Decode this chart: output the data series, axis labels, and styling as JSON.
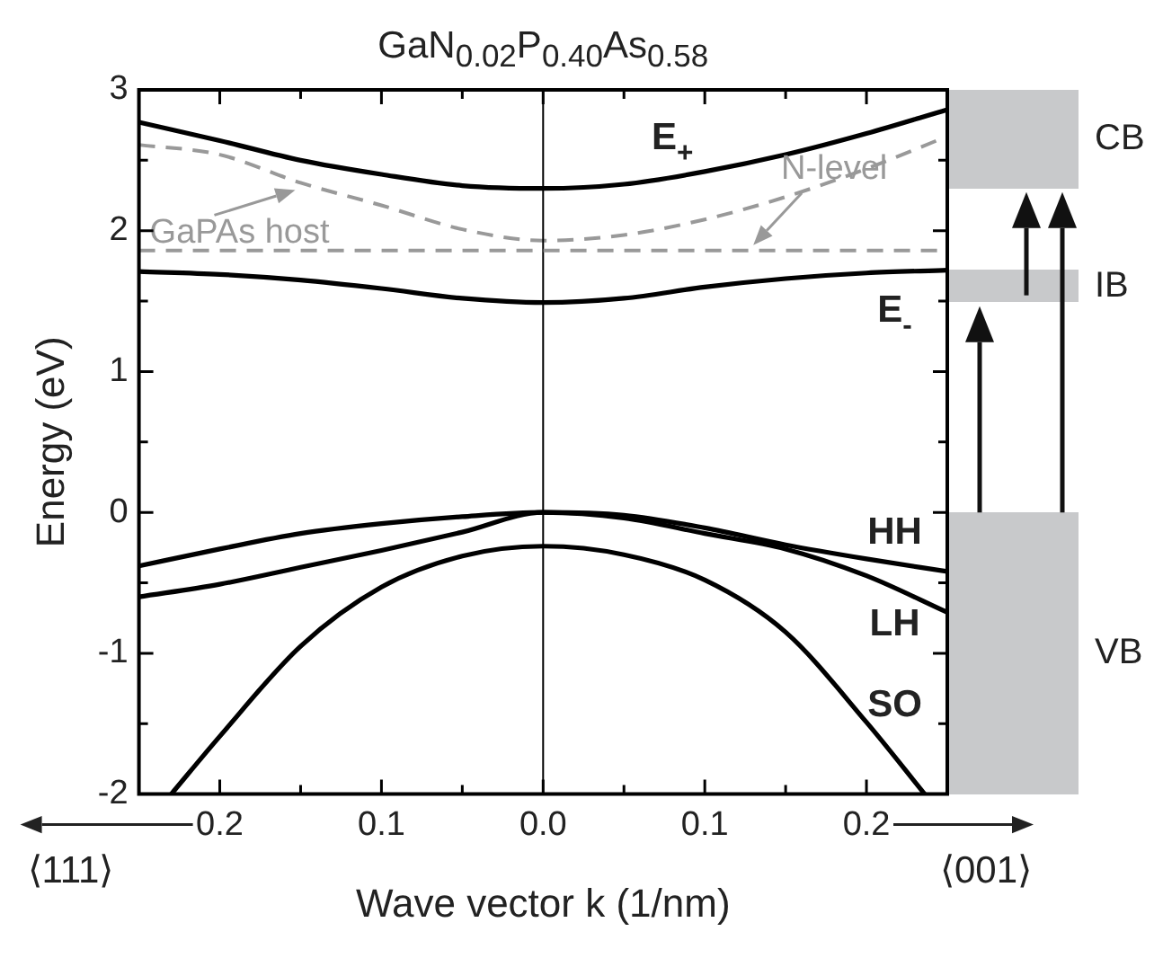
{
  "chart_data": {
    "type": "line",
    "title": "GaN$_{0.02}$P$_{0.40}$As$_{0.58}$",
    "xlabel": "Wave vector k (1/nm)",
    "ylabel": "Energy (eV)",
    "xlim": [
      -0.25,
      0.25
    ],
    "xticks": [
      {
        "value": -0.2,
        "label": "0.2"
      },
      {
        "value": -0.15,
        "label": null
      },
      {
        "value": -0.1,
        "label": "0.1"
      },
      {
        "value": -0.05,
        "label": null
      },
      {
        "value": 0,
        "label": "0.0"
      },
      {
        "value": 0.05,
        "label": null
      },
      {
        "value": 0.1,
        "label": "0.1"
      },
      {
        "value": 0.15,
        "label": null
      },
      {
        "value": 0.2,
        "label": "0.2"
      }
    ],
    "ylim": [
      -2,
      3
    ],
    "yticks": [
      -2,
      {
        "value": -1.5,
        "label": null
      },
      -1,
      {
        "value": -0.5,
        "label": null
      },
      0,
      {
        "value": 0.5,
        "label": null
      },
      1,
      {
        "value": 1.5,
        "label": null
      },
      2,
      {
        "value": 2.5,
        "label": null
      },
      3
    ],
    "grid": false,
    "legend": false,
    "marker": "none",
    "series": [
      {
        "color": "#000000",
        "line_style": "solid",
        "x": [
          -0.25,
          -0.2,
          -0.15,
          -0.1,
          -0.05,
          0,
          0.05,
          0.1,
          0.15,
          0.2,
          0.25
        ],
        "values": [
          2.77,
          2.64,
          2.5,
          2.4,
          2.32,
          2.3,
          2.33,
          2.42,
          2.54,
          2.69,
          2.86
        ]
      },
      {
        "color": "#999999",
        "line_style": "dashed",
        "x": [
          -0.25,
          -0.2,
          -0.15,
          -0.1,
          -0.05,
          0,
          0.05,
          0.1,
          0.15,
          0.2,
          0.25
        ],
        "values": [
          2.61,
          2.54,
          2.34,
          2.18,
          2.01,
          1.93,
          1.97,
          2.08,
          2.24,
          2.44,
          2.67
        ]
      },
      {
        "color": "#000000",
        "line_style": "solid",
        "x": [
          -0.25,
          -0.2,
          -0.15,
          -0.1,
          -0.05,
          0,
          0.05,
          0.1,
          0.15,
          0.2,
          0.25
        ],
        "values": [
          1.71,
          1.69,
          1.65,
          1.59,
          1.52,
          1.49,
          1.52,
          1.6,
          1.66,
          1.7,
          1.72
        ]
      },
      {
        "color": "#000000",
        "line_style": "solid",
        "x": [
          -0.25,
          -0.2,
          -0.15,
          -0.1,
          -0.05,
          0,
          0.05,
          0.1,
          0.15,
          0.2,
          0.25
        ],
        "values": [
          -0.38,
          -0.26,
          -0.15,
          -0.08,
          -0.03,
          0,
          -0.02,
          -0.11,
          -0.23,
          -0.33,
          -0.42
        ]
      },
      {
        "color": "#000000",
        "line_style": "solid",
        "x": [
          -0.25,
          -0.2,
          -0.15,
          -0.1,
          -0.05,
          0,
          0.05,
          0.1,
          0.15,
          0.2,
          0.25
        ],
        "values": [
          -0.6,
          -0.51,
          -0.39,
          -0.27,
          -0.14,
          0,
          -0.04,
          -0.15,
          -0.26,
          -0.45,
          -0.71
        ]
      },
      {
        "color": "#000000",
        "line_style": "solid",
        "x": [
          -0.23,
          -0.2,
          -0.15,
          -0.1,
          -0.05,
          0,
          0.05,
          0.1,
          0.15,
          0.2,
          0.236
        ],
        "values": [
          -2,
          -1.59,
          -0.95,
          -0.53,
          -0.31,
          -0.24,
          -0.3,
          -0.48,
          -0.85,
          -1.49,
          -2
        ]
      }
    ],
    "ref_lines": [
      {
        "axis": "x",
        "value": 0,
        "color": "#000000",
        "line_style": "solid"
      },
      {
        "axis": "y",
        "value": 1.86,
        "label": "N-level",
        "color": "#999999",
        "line_style": "dashed"
      }
    ],
    "annotations": [
      "⟨111⟩",
      "⟨001⟩",
      "E$_{+}$",
      "E$_{-}$",
      "HH",
      "LH",
      "SO",
      "CB",
      "IB",
      "VB",
      {
        "text": "GaPAs host",
        "x": -0.15,
        "y": 2.34
      }
    ]
  }
}
